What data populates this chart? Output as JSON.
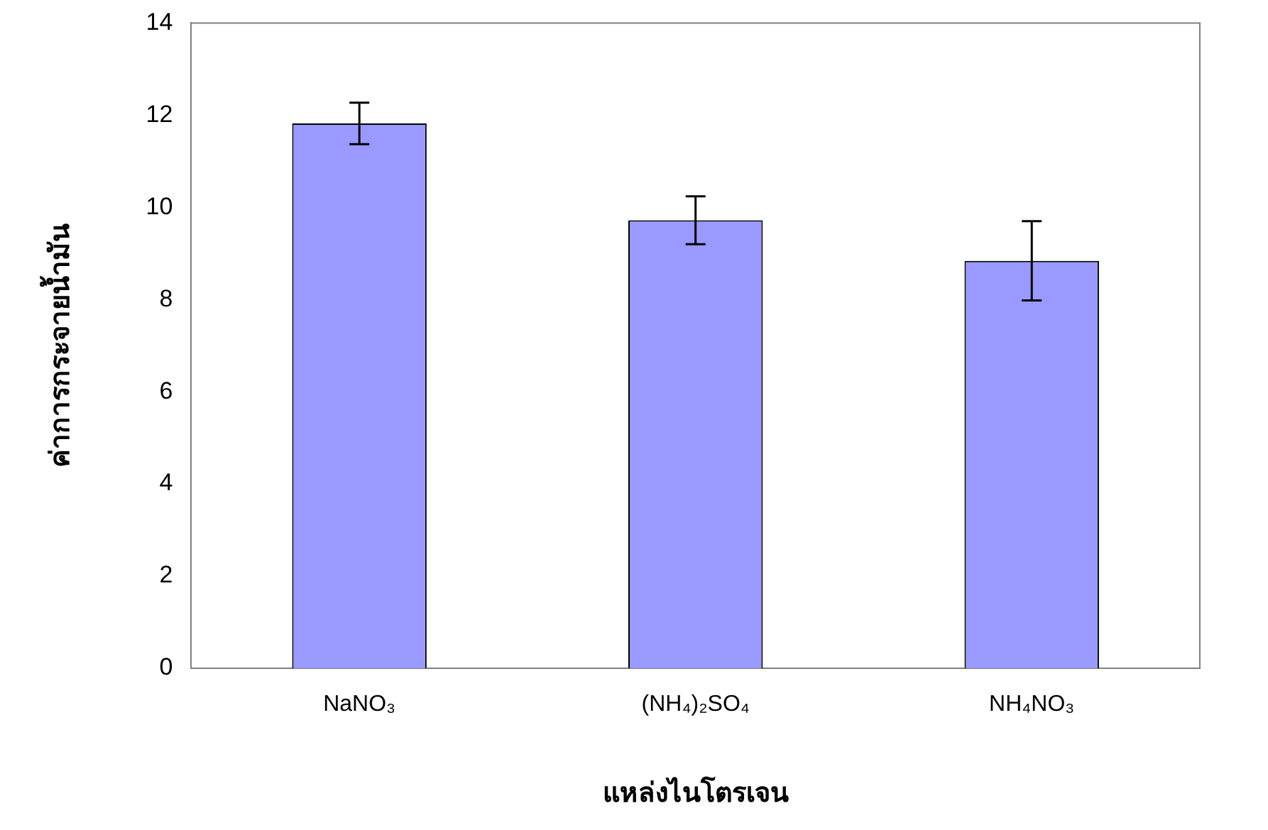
{
  "chart_data": {
    "type": "bar",
    "xlabel": "แหล่งไนโตรเจน",
    "ylabel": "ค่าการกระจายน้ำมัน",
    "categories": [
      "NaNO₃",
      "(NH₄)₂SO₄",
      "NH₄NO₃"
    ],
    "values": [
      11.82,
      9.72,
      8.84
    ],
    "errors": [
      0.45,
      0.52,
      0.86
    ],
    "color": "#9999ff",
    "ylim": [
      0,
      14
    ],
    "yticks": [
      0,
      2,
      4,
      6,
      8,
      10,
      12,
      14
    ],
    "grid": false,
    "legend": false
  }
}
